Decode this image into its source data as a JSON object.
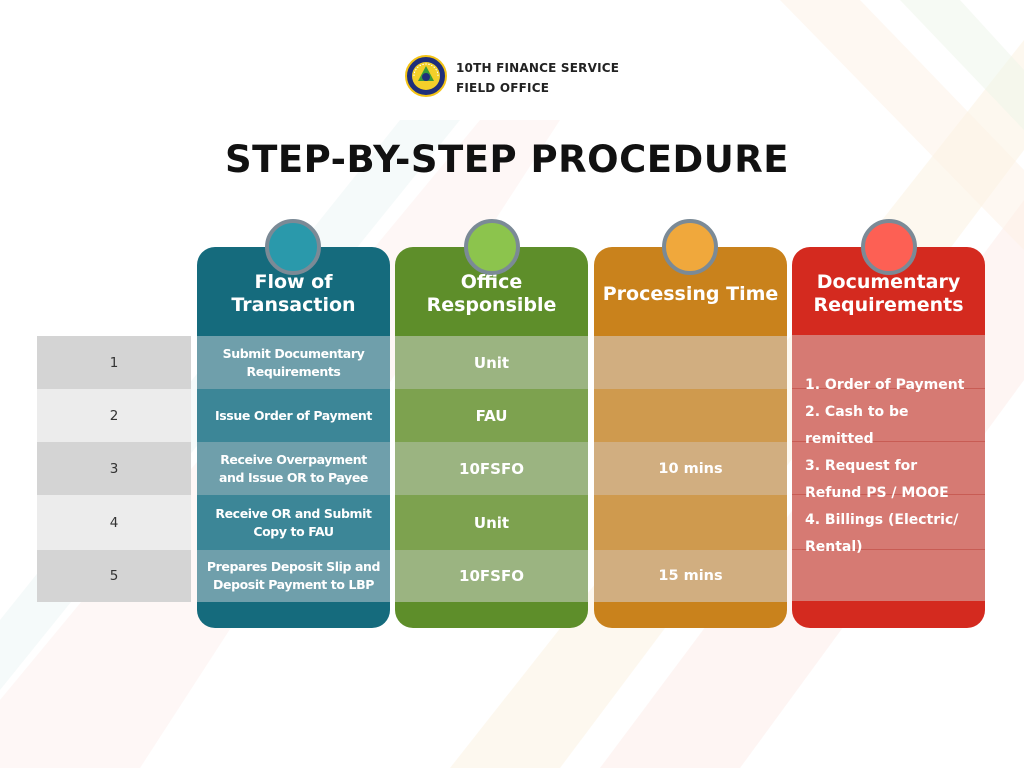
{
  "header": {
    "org_line1": "10TH FINANCE SERVICE",
    "org_line2": "FIELD OFFICE",
    "logo": "seal-logo",
    "title": "STEP-BY-STEP PROCEDURE"
  },
  "columns": {
    "flow": {
      "title_line1": "Flow of",
      "title_line2": "Transaction",
      "color": "#156b7d",
      "circle": "#2a99ab"
    },
    "office": {
      "title_line1": "Office",
      "title_line2": "Responsible",
      "color": "#5e8e2a",
      "circle": "#8cc44d"
    },
    "time": {
      "title_line1": "Processing Time",
      "color": "#c9821c",
      "circle": "#f0a83c"
    },
    "docs": {
      "title_line1": "Documentary",
      "title_line2": "Requirements",
      "color": "#d42a1f",
      "circle": "#fd6054"
    }
  },
  "steps": [
    {
      "num": "1",
      "flow_l1": "Submit Documentary",
      "flow_l2": "Requirements",
      "office": "Unit",
      "time": ""
    },
    {
      "num": "2",
      "flow_l1": "Issue Order of Payment",
      "flow_l2": "",
      "office": "FAU",
      "time": ""
    },
    {
      "num": "3",
      "flow_l1": "Receive Overpayment",
      "flow_l2": "and Issue OR to Payee",
      "office": "10FSFO",
      "time": "10 mins"
    },
    {
      "num": "4",
      "flow_l1": "Receive OR and Submit",
      "flow_l2": "Copy to FAU",
      "office": "Unit",
      "time": ""
    },
    {
      "num": "5",
      "flow_l1": "Prepares Deposit Slip and",
      "flow_l2": "Deposit Payment to LBP",
      "office": "10FSFO",
      "time": "15 mins"
    }
  ],
  "documents": [
    "1. Order of Payment",
    "2. Cash to be",
    "remitted",
    "3. Request for",
    "Refund PS / MOOE",
    "4. Billings (Electric/",
    "Rental)"
  ]
}
